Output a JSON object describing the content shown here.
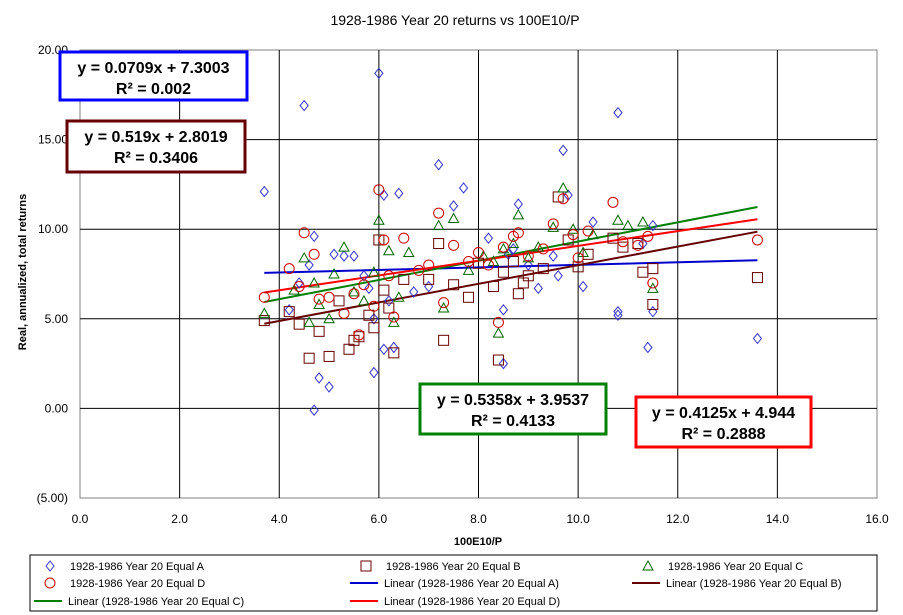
{
  "chart_data": {
    "type": "scatter",
    "title": "1928-1986 Year 20 returns vs 100E10/P",
    "xlabel": "100E10/P",
    "ylabel": "Real, annualized, total returns",
    "xlim": [
      0,
      16
    ],
    "ylim": [
      -5,
      20
    ],
    "x_ticks": [
      0,
      2,
      4,
      6,
      8,
      10,
      12,
      14,
      16
    ],
    "x_tick_labels": [
      "0.0",
      "2.0",
      "4.0",
      "6.0",
      "8.0",
      "10.0",
      "12.0",
      "14.0",
      "16.0"
    ],
    "y_ticks": [
      -5,
      0,
      5,
      10,
      15,
      20
    ],
    "y_tick_labels": [
      "(5.00)",
      "0.00",
      "5.00",
      "10.00",
      "15.00",
      "20.00"
    ],
    "grid": true,
    "legend_placement": "bottom",
    "series": [
      {
        "name": "1928-1986 Year 20 Equal A",
        "marker": "diamond",
        "color": "#3333cc",
        "points": [
          [
            3.7,
            12.1
          ],
          [
            4.5,
            16.9
          ],
          [
            6.0,
            18.7
          ],
          [
            10.8,
            16.5
          ],
          [
            7.2,
            13.6
          ],
          [
            9.7,
            14.4
          ],
          [
            4.7,
            9.6
          ],
          [
            4.7,
            -0.1
          ],
          [
            4.8,
            1.7
          ],
          [
            5.0,
            1.2
          ],
          [
            5.9,
            2.0
          ],
          [
            6.1,
            3.3
          ],
          [
            6.3,
            3.4
          ],
          [
            11.4,
            3.4
          ],
          [
            13.6,
            3.9
          ],
          [
            4.2,
            5.5
          ],
          [
            4.4,
            7.0
          ],
          [
            4.6,
            8.0
          ],
          [
            5.1,
            8.6
          ],
          [
            5.3,
            8.5
          ],
          [
            5.5,
            8.5
          ],
          [
            5.7,
            7.4
          ],
          [
            5.8,
            6.7
          ],
          [
            5.9,
            5.0
          ],
          [
            6.1,
            11.9
          ],
          [
            6.4,
            12.0
          ],
          [
            6.7,
            6.5
          ],
          [
            7.5,
            11.3
          ],
          [
            7.7,
            12.3
          ],
          [
            8.2,
            9.5
          ],
          [
            8.6,
            8.6
          ],
          [
            8.7,
            8.9
          ],
          [
            8.8,
            11.4
          ],
          [
            9.2,
            6.7
          ],
          [
            9.6,
            7.4
          ],
          [
            9.8,
            11.9
          ],
          [
            10.1,
            6.8
          ],
          [
            10.3,
            10.4
          ],
          [
            10.8,
            5.4
          ],
          [
            10.8,
            5.2
          ],
          [
            11.3,
            9.2
          ],
          [
            11.5,
            5.4
          ],
          [
            11.5,
            10.2
          ],
          [
            8.5,
            2.5
          ],
          [
            8.5,
            5.5
          ],
          [
            6.2,
            6.0
          ],
          [
            7.0,
            6.8
          ],
          [
            9.0,
            8.0
          ],
          [
            9.5,
            8.5
          ]
        ]
      },
      {
        "name": "1928-1986 Year 20 Equal B",
        "marker": "square",
        "color": "#660000",
        "points": [
          [
            3.7,
            4.9
          ],
          [
            4.2,
            5.4
          ],
          [
            4.4,
            4.7
          ],
          [
            4.6,
            2.8
          ],
          [
            4.8,
            4.3
          ],
          [
            5.0,
            2.9
          ],
          [
            5.2,
            6.0
          ],
          [
            5.4,
            3.3
          ],
          [
            5.6,
            4.0
          ],
          [
            5.8,
            5.2
          ],
          [
            5.9,
            4.5
          ],
          [
            6.0,
            9.4
          ],
          [
            6.1,
            6.6
          ],
          [
            6.3,
            3.1
          ],
          [
            6.5,
            7.2
          ],
          [
            7.2,
            9.2
          ],
          [
            7.3,
            3.8
          ],
          [
            7.5,
            6.9
          ],
          [
            7.8,
            6.2
          ],
          [
            8.0,
            8.1
          ],
          [
            8.3,
            6.8
          ],
          [
            8.4,
            2.7
          ],
          [
            8.5,
            7.6
          ],
          [
            8.7,
            8.2
          ],
          [
            8.8,
            6.4
          ],
          [
            8.9,
            7.0
          ],
          [
            9.0,
            7.4
          ],
          [
            9.3,
            7.8
          ],
          [
            9.6,
            11.8
          ],
          [
            9.8,
            9.4
          ],
          [
            10.0,
            7.9
          ],
          [
            10.2,
            8.6
          ],
          [
            10.7,
            9.5
          ],
          [
            10.9,
            9.0
          ],
          [
            11.2,
            9.2
          ],
          [
            11.3,
            7.6
          ],
          [
            11.5,
            7.8
          ],
          [
            11.5,
            5.8
          ],
          [
            13.6,
            7.3
          ],
          [
            5.5,
            3.8
          ],
          [
            6.2,
            5.6
          ],
          [
            7.0,
            7.2
          ]
        ]
      },
      {
        "name": "1928-1986 Year 20 Equal C",
        "marker": "triangle",
        "color": "#006600",
        "points": [
          [
            3.7,
            5.3
          ],
          [
            4.3,
            6.6
          ],
          [
            4.5,
            8.4
          ],
          [
            4.7,
            7.0
          ],
          [
            4.8,
            5.8
          ],
          [
            5.1,
            7.5
          ],
          [
            5.3,
            9.0
          ],
          [
            5.5,
            6.5
          ],
          [
            5.7,
            6.0
          ],
          [
            5.9,
            7.6
          ],
          [
            6.0,
            10.5
          ],
          [
            6.2,
            8.8
          ],
          [
            6.4,
            6.2
          ],
          [
            6.6,
            8.7
          ],
          [
            7.2,
            10.2
          ],
          [
            7.3,
            5.6
          ],
          [
            7.5,
            10.6
          ],
          [
            7.8,
            7.7
          ],
          [
            8.1,
            8.5
          ],
          [
            8.3,
            8.2
          ],
          [
            8.4,
            4.2
          ],
          [
            8.5,
            8.9
          ],
          [
            8.7,
            9.2
          ],
          [
            8.8,
            10.8
          ],
          [
            9.0,
            8.4
          ],
          [
            9.2,
            9.0
          ],
          [
            9.5,
            10.1
          ],
          [
            9.7,
            12.3
          ],
          [
            9.9,
            10.0
          ],
          [
            10.1,
            8.7
          ],
          [
            10.3,
            9.7
          ],
          [
            10.8,
            10.5
          ],
          [
            11.0,
            10.2
          ],
          [
            11.3,
            10.4
          ],
          [
            11.5,
            6.7
          ],
          [
            5.0,
            5.0
          ],
          [
            6.3,
            4.8
          ],
          [
            4.6,
            4.8
          ]
        ]
      },
      {
        "name": "1928-1986 Year 20 Equal D",
        "marker": "circle",
        "color": "#cc0000",
        "points": [
          [
            3.7,
            6.2
          ],
          [
            4.2,
            7.8
          ],
          [
            4.4,
            6.8
          ],
          [
            4.5,
            9.8
          ],
          [
            4.7,
            8.6
          ],
          [
            4.8,
            6.1
          ],
          [
            5.0,
            6.2
          ],
          [
            5.3,
            5.3
          ],
          [
            5.5,
            6.4
          ],
          [
            5.7,
            6.9
          ],
          [
            5.9,
            5.7
          ],
          [
            6.0,
            12.2
          ],
          [
            6.1,
            9.4
          ],
          [
            6.3,
            5.1
          ],
          [
            6.5,
            9.5
          ],
          [
            7.2,
            10.9
          ],
          [
            7.3,
            5.9
          ],
          [
            7.5,
            9.1
          ],
          [
            7.8,
            8.2
          ],
          [
            8.0,
            8.7
          ],
          [
            8.2,
            8.0
          ],
          [
            8.4,
            4.8
          ],
          [
            8.5,
            9.0
          ],
          [
            8.7,
            9.6
          ],
          [
            8.8,
            9.8
          ],
          [
            9.0,
            8.5
          ],
          [
            9.3,
            8.9
          ],
          [
            9.5,
            10.3
          ],
          [
            9.7,
            11.7
          ],
          [
            9.9,
            9.7
          ],
          [
            10.0,
            8.4
          ],
          [
            10.2,
            9.9
          ],
          [
            10.7,
            11.5
          ],
          [
            10.9,
            9.3
          ],
          [
            11.2,
            9.1
          ],
          [
            11.4,
            9.6
          ],
          [
            11.5,
            7.0
          ],
          [
            13.6,
            9.4
          ],
          [
            5.6,
            4.1
          ],
          [
            6.2,
            7.4
          ],
          [
            6.8,
            7.7
          ],
          [
            7.0,
            8.0
          ]
        ]
      }
    ],
    "trendlines": [
      {
        "name": "Linear (1928-1986 Year 20 Equal A)",
        "slope": 0.0709,
        "intercept": 7.3003,
        "x_range": [
          3.7,
          13.6
        ],
        "color": "#0000cc"
      },
      {
        "name": "Linear (1928-1986 Year 20 Equal B)",
        "slope": 0.519,
        "intercept": 2.8019,
        "x_range": [
          3.7,
          13.6
        ],
        "color": "#660000"
      },
      {
        "name": "Linear (1928-1986 Year 20 Equal C)",
        "slope": 0.5358,
        "intercept": 3.9537,
        "x_range": [
          3.7,
          13.6
        ],
        "color": "#008000"
      },
      {
        "name": "Linear (1928-1986 Year 20 Equal D)",
        "slope": 0.4125,
        "intercept": 4.944,
        "x_range": [
          3.7,
          13.6
        ],
        "color": "#ff0000"
      }
    ],
    "annotations": [
      {
        "equation": "y = 0.0709x + 7.3003",
        "r2": "R² = 0.002",
        "border_color": "#0000ff"
      },
      {
        "equation": "y = 0.519x + 2.8019",
        "r2": "R² = 0.3406",
        "border_color": "#660000"
      },
      {
        "equation": "y = 0.5358x + 3.9537",
        "r2": "R² = 0.4133",
        "border_color": "#008000"
      },
      {
        "equation": "y = 0.4125x + 4.944",
        "r2": "R² = 0.2888",
        "border_color": "#ff0000"
      }
    ]
  }
}
